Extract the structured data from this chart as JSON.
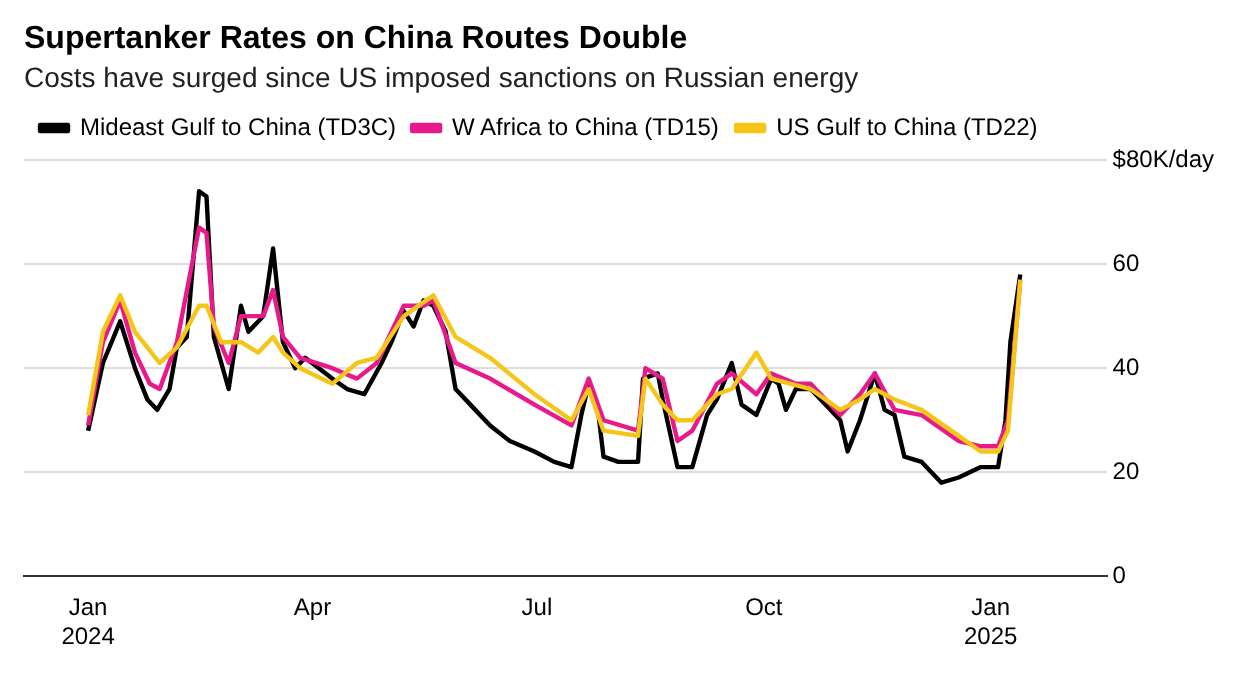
{
  "chart_data": {
    "type": "line",
    "title": "Supertanker Rates on China Routes Double",
    "subtitle": "Costs have surged since US imposed sanctions on Russian energy",
    "series": [
      {
        "name": "Mideast Gulf to China (TD3C)",
        "color": "#000000",
        "x": [
          "2024-01-01",
          "2024-01-07",
          "2024-01-14",
          "2024-01-20",
          "2024-01-25",
          "2024-01-29",
          "2024-02-03",
          "2024-02-06",
          "2024-02-10",
          "2024-02-15",
          "2024-02-18",
          "2024-02-21",
          "2024-02-27",
          "2024-03-03",
          "2024-03-06",
          "2024-03-12",
          "2024-03-16",
          "2024-03-20",
          "2024-03-25",
          "2024-03-29",
          "2024-04-09",
          "2024-04-15",
          "2024-04-22",
          "2024-04-29",
          "2024-05-03",
          "2024-05-08",
          "2024-05-12",
          "2024-05-16",
          "2024-05-20",
          "2024-05-25",
          "2024-05-29",
          "2024-06-04",
          "2024-06-12",
          "2024-06-20",
          "2024-06-30",
          "2024-07-08",
          "2024-07-15",
          "2024-07-19",
          "2024-07-22",
          "2024-07-26",
          "2024-07-28",
          "2024-08-03",
          "2024-08-11",
          "2024-08-13",
          "2024-08-19",
          "2024-08-21",
          "2024-08-27",
          "2024-09-02",
          "2024-09-08",
          "2024-09-12",
          "2024-09-18",
          "2024-09-22",
          "2024-09-28",
          "2024-10-04",
          "2024-10-07",
          "2024-10-10",
          "2024-10-14",
          "2024-10-20",
          "2024-10-28",
          "2024-11-01",
          "2024-11-04",
          "2024-11-09",
          "2024-11-15",
          "2024-11-19",
          "2024-11-23",
          "2024-11-27",
          "2024-12-04",
          "2024-12-12",
          "2024-12-19",
          "2024-12-28",
          "2025-01-04",
          "2025-01-07",
          "2025-01-09",
          "2025-01-13"
        ],
        "values": [
          28,
          41,
          49,
          40,
          34,
          32,
          36,
          44,
          46,
          74,
          73,
          46,
          36,
          52,
          47,
          50,
          63,
          45,
          40,
          42,
          38,
          36,
          35,
          41,
          45,
          51,
          48,
          53,
          52,
          47,
          36,
          33,
          29,
          26,
          24,
          22,
          21,
          31,
          37,
          31,
          23,
          22,
          22,
          38,
          39,
          34,
          21,
          21,
          31,
          34,
          41,
          33,
          31,
          38,
          37,
          32,
          36,
          36,
          32,
          30,
          24,
          30,
          39,
          32,
          31,
          23,
          22,
          18,
          19,
          21,
          21,
          30,
          45,
          58
        ]
      },
      {
        "name": "W Africa to China (TD15)",
        "color": "#e8198b",
        "x": [
          "2024-01-01",
          "2024-01-07",
          "2024-01-14",
          "2024-01-20",
          "2024-01-26",
          "2024-01-30",
          "2024-02-06",
          "2024-02-15",
          "2024-02-18",
          "2024-02-21",
          "2024-02-27",
          "2024-03-03",
          "2024-03-12",
          "2024-03-16",
          "2024-03-20",
          "2024-03-27",
          "2024-04-09",
          "2024-04-19",
          "2024-04-27",
          "2024-05-08",
          "2024-05-16",
          "2024-05-20",
          "2024-05-29",
          "2024-06-12",
          "2024-06-30",
          "2024-07-15",
          "2024-07-22",
          "2024-07-28",
          "2024-08-11",
          "2024-08-14",
          "2024-08-21",
          "2024-08-27",
          "2024-09-02",
          "2024-09-12",
          "2024-09-18",
          "2024-09-28",
          "2024-10-04",
          "2024-10-14",
          "2024-10-20",
          "2024-11-01",
          "2024-11-09",
          "2024-11-15",
          "2024-11-23",
          "2024-12-04",
          "2024-12-19",
          "2024-12-28",
          "2025-01-04",
          "2025-01-08",
          "2025-01-13"
        ],
        "values": [
          29,
          45,
          53,
          43,
          37,
          36,
          45,
          67,
          66,
          48,
          41,
          50,
          50,
          55,
          46,
          42,
          40,
          38,
          41,
          52,
          52,
          53,
          41,
          38,
          33,
          29,
          38,
          30,
          28,
          40,
          38,
          26,
          28,
          37,
          39,
          35,
          39,
          37,
          37,
          31,
          35,
          39,
          32,
          31,
          26,
          25,
          25,
          30,
          57
        ]
      },
      {
        "name": "US Gulf to China (TD22)",
        "color": "#f5c518",
        "x": [
          "2024-01-01",
          "2024-01-07",
          "2024-01-14",
          "2024-01-20",
          "2024-01-30",
          "2024-02-06",
          "2024-02-15",
          "2024-02-18",
          "2024-02-24",
          "2024-03-03",
          "2024-03-10",
          "2024-03-16",
          "2024-03-20",
          "2024-03-27",
          "2024-04-09",
          "2024-04-19",
          "2024-04-27",
          "2024-05-08",
          "2024-05-20",
          "2024-05-29",
          "2024-06-12",
          "2024-06-30",
          "2024-07-15",
          "2024-07-22",
          "2024-07-28",
          "2024-08-11",
          "2024-08-14",
          "2024-08-21",
          "2024-08-27",
          "2024-09-02",
          "2024-09-12",
          "2024-09-18",
          "2024-09-28",
          "2024-10-04",
          "2024-10-20",
          "2024-11-01",
          "2024-11-09",
          "2024-11-15",
          "2024-11-23",
          "2024-12-04",
          "2024-12-19",
          "2024-12-28",
          "2025-01-04",
          "2025-01-08",
          "2025-01-13"
        ],
        "values": [
          31,
          47,
          54,
          47,
          41,
          44,
          52,
          52,
          45,
          45,
          43,
          46,
          43,
          40,
          37,
          41,
          42,
          50,
          54,
          46,
          42,
          35,
          30,
          36,
          28,
          27,
          38,
          33,
          30,
          30,
          35,
          36,
          43,
          38,
          36,
          32,
          34,
          36,
          34,
          32,
          27,
          24,
          24,
          28,
          57
        ]
      }
    ],
    "xlim": [
      "2023-12-06",
      "2025-02-17"
    ],
    "xticks": [
      {
        "value": "2024-01-01",
        "label": "Jan\n2024"
      },
      {
        "value": "2024-04-01",
        "label": "Apr"
      },
      {
        "value": "2024-07-01",
        "label": "Jul"
      },
      {
        "value": "2024-10-01",
        "label": "Oct"
      },
      {
        "value": "2025-01-01",
        "label": "Jan\n2025"
      }
    ],
    "ylim": [
      0,
      80
    ],
    "yticks": [
      0,
      20,
      40,
      60,
      {
        "value": 80,
        "label": "$80K/day"
      }
    ],
    "grid": "y",
    "legend": "top left",
    "marker": "none",
    "line_style": "solid"
  }
}
